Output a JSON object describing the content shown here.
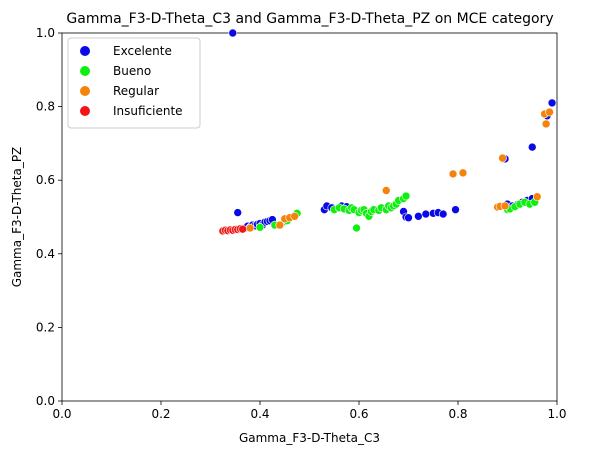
{
  "chart_data": {
    "type": "scatter",
    "title": "Gamma_F3-D-Theta_C3 and Gamma_F3-D-Theta_PZ on MCE category",
    "xlabel": "Gamma_F3-D-Theta_C3",
    "ylabel": "Gamma_F3-D-Theta_PZ",
    "xlim": [
      0,
      1
    ],
    "ylim": [
      0,
      1
    ],
    "xticks": [
      "0.0",
      "0.2",
      "0.4",
      "0.6",
      "0.8",
      "1.0"
    ],
    "yticks": [
      "0.0",
      "0.2",
      "0.4",
      "0.6",
      "0.8",
      "1.0"
    ],
    "grid": false,
    "legend_position": "top-left",
    "series": [
      {
        "name": "Excelente",
        "color": "#0a0ae6",
        "points": [
          [
            0.345,
            1.0
          ],
          [
            0.355,
            0.512
          ],
          [
            0.37,
            0.47
          ],
          [
            0.375,
            0.475
          ],
          [
            0.38,
            0.472
          ],
          [
            0.385,
            0.478
          ],
          [
            0.39,
            0.476
          ],
          [
            0.395,
            0.48
          ],
          [
            0.4,
            0.482
          ],
          [
            0.405,
            0.478
          ],
          [
            0.41,
            0.486
          ],
          [
            0.415,
            0.488
          ],
          [
            0.42,
            0.49
          ],
          [
            0.425,
            0.493
          ],
          [
            0.53,
            0.52
          ],
          [
            0.535,
            0.53
          ],
          [
            0.545,
            0.525
          ],
          [
            0.565,
            0.53
          ],
          [
            0.575,
            0.528
          ],
          [
            0.69,
            0.515
          ],
          [
            0.695,
            0.5
          ],
          [
            0.7,
            0.498
          ],
          [
            0.72,
            0.502
          ],
          [
            0.735,
            0.508
          ],
          [
            0.75,
            0.51
          ],
          [
            0.76,
            0.512
          ],
          [
            0.77,
            0.508
          ],
          [
            0.795,
            0.52
          ],
          [
            0.895,
            0.658
          ],
          [
            0.9,
            0.535
          ],
          [
            0.91,
            0.53
          ],
          [
            0.92,
            0.533
          ],
          [
            0.93,
            0.54
          ],
          [
            0.94,
            0.545
          ],
          [
            0.95,
            0.55
          ],
          [
            0.95,
            0.69
          ],
          [
            0.98,
            0.775
          ],
          [
            0.99,
            0.81
          ]
        ]
      },
      {
        "name": "Bueno",
        "color": "#10f010",
        "points": [
          [
            0.4,
            0.472
          ],
          [
            0.43,
            0.478
          ],
          [
            0.45,
            0.488
          ],
          [
            0.455,
            0.49
          ],
          [
            0.475,
            0.51
          ],
          [
            0.55,
            0.52
          ],
          [
            0.56,
            0.525
          ],
          [
            0.57,
            0.522
          ],
          [
            0.58,
            0.518
          ],
          [
            0.585,
            0.525
          ],
          [
            0.59,
            0.52
          ],
          [
            0.595,
            0.47
          ],
          [
            0.6,
            0.512
          ],
          [
            0.605,
            0.518
          ],
          [
            0.61,
            0.52
          ],
          [
            0.615,
            0.51
          ],
          [
            0.62,
            0.502
          ],
          [
            0.625,
            0.515
          ],
          [
            0.63,
            0.52
          ],
          [
            0.64,
            0.518
          ],
          [
            0.645,
            0.525
          ],
          [
            0.655,
            0.52
          ],
          [
            0.66,
            0.53
          ],
          [
            0.665,
            0.525
          ],
          [
            0.67,
            0.53
          ],
          [
            0.675,
            0.535
          ],
          [
            0.68,
            0.545
          ],
          [
            0.69,
            0.55
          ],
          [
            0.695,
            0.557
          ],
          [
            0.9,
            0.52
          ],
          [
            0.905,
            0.522
          ],
          [
            0.915,
            0.528
          ],
          [
            0.925,
            0.535
          ],
          [
            0.935,
            0.54
          ],
          [
            0.945,
            0.535
          ],
          [
            0.955,
            0.54
          ]
        ]
      },
      {
        "name": "Regular",
        "color": "#f5820a",
        "points": [
          [
            0.35,
            0.466
          ],
          [
            0.38,
            0.47
          ],
          [
            0.44,
            0.478
          ],
          [
            0.45,
            0.495
          ],
          [
            0.46,
            0.498
          ],
          [
            0.47,
            0.502
          ],
          [
            0.655,
            0.572
          ],
          [
            0.79,
            0.617
          ],
          [
            0.81,
            0.62
          ],
          [
            0.88,
            0.527
          ],
          [
            0.885,
            0.529
          ],
          [
            0.89,
            0.66
          ],
          [
            0.895,
            0.53
          ],
          [
            0.96,
            0.555
          ],
          [
            0.975,
            0.78
          ],
          [
            0.978,
            0.753
          ],
          [
            0.985,
            0.785
          ]
        ]
      },
      {
        "name": "Insuficiente",
        "color": "#f21515",
        "points": [
          [
            0.325,
            0.462
          ],
          [
            0.33,
            0.464
          ],
          [
            0.335,
            0.463
          ],
          [
            0.34,
            0.465
          ],
          [
            0.345,
            0.464
          ],
          [
            0.35,
            0.466
          ],
          [
            0.355,
            0.466
          ],
          [
            0.36,
            0.468
          ],
          [
            0.365,
            0.467
          ]
        ]
      }
    ]
  }
}
